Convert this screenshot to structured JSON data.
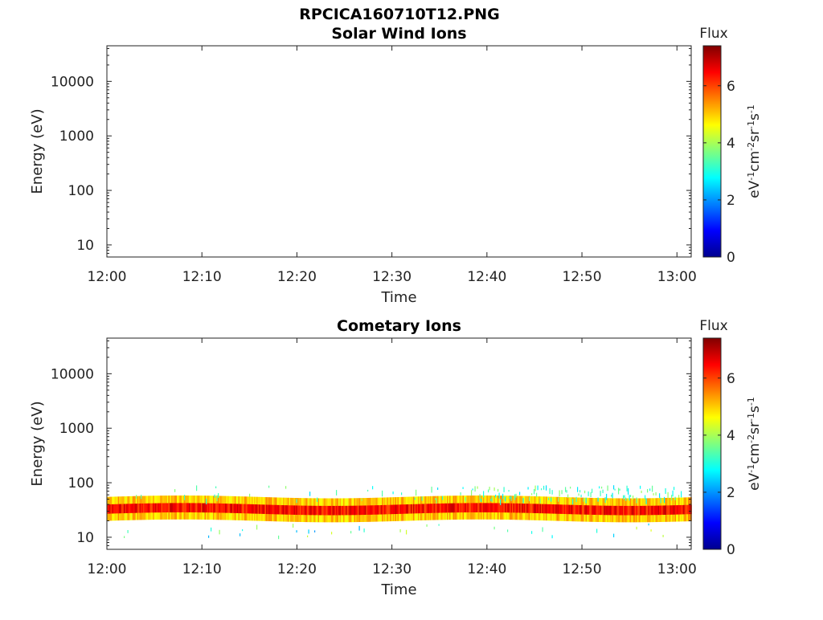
{
  "figure_title": "RPCICA160710T12.PNG",
  "chart_data": [
    {
      "type": "heatmap",
      "title": "Solar Wind Ions",
      "xlabel": "Time",
      "ylabel": "Energy (eV)",
      "x_ticks": [
        "12:00",
        "12:10",
        "12:20",
        "12:30",
        "12:40",
        "12:50",
        "13:00"
      ],
      "x_range_minutes": [
        0,
        61.5
      ],
      "y_scale": "log",
      "y_ticks": [
        10,
        100,
        1000,
        10000
      ],
      "y_tick_labels": [
        "10",
        "100",
        "1000",
        "10000"
      ],
      "y_range_eV": [
        6,
        45000
      ],
      "grid": false,
      "colorbar": {
        "title": "Flux",
        "unit_label": "eV-1cm-2sr-1s-1",
        "unit_parts": [
          {
            "b": "eV",
            "s": "-1"
          },
          {
            "b": "cm",
            "s": "-2"
          },
          {
            "b": "sr",
            "s": "-1"
          },
          {
            "b": "s",
            "s": "-1"
          }
        ],
        "range": [
          0,
          7.4
        ],
        "ticks": [
          0,
          2,
          4,
          6
        ],
        "tick_labels": [
          "0",
          "2",
          "4",
          "6"
        ],
        "colormap": "jet"
      },
      "data": {
        "note_visible": false,
        "band": null
      }
    },
    {
      "type": "heatmap",
      "title": "Cometary Ions",
      "xlabel": "Time",
      "ylabel": "Energy (eV)",
      "x_ticks": [
        "12:00",
        "12:10",
        "12:20",
        "12:30",
        "12:40",
        "12:50",
        "13:00"
      ],
      "x_range_minutes": [
        0,
        61.5
      ],
      "y_scale": "log",
      "y_ticks": [
        10,
        100,
        1000,
        10000
      ],
      "y_tick_labels": [
        "10",
        "100",
        "1000",
        "10000"
      ],
      "y_range_eV": [
        6,
        45000
      ],
      "grid": false,
      "colorbar": {
        "title": "Flux",
        "unit_label": "eV-1cm-2sr-1s-1",
        "unit_parts": [
          {
            "b": "eV",
            "s": "-1"
          },
          {
            "b": "cm",
            "s": "-2"
          },
          {
            "b": "sr",
            "s": "-1"
          },
          {
            "b": "s",
            "s": "-1"
          }
        ],
        "range": [
          0,
          7.4
        ],
        "ticks": [
          0,
          2,
          4,
          6
        ],
        "tick_labels": [
          "0",
          "2",
          "4",
          "6"
        ],
        "colormap": "jet"
      },
      "data": {
        "band": {
          "center_energy_eV": 33,
          "core_width_eV": [
            27,
            40
          ],
          "halo_width_eV": [
            20,
            55
          ],
          "peak_flux": 6.8,
          "sparse_high_energy_eV": [
            50,
            90
          ],
          "sparse_high_flux": 2.5,
          "sparse_high_active_after_min": 37
        }
      }
    }
  ]
}
